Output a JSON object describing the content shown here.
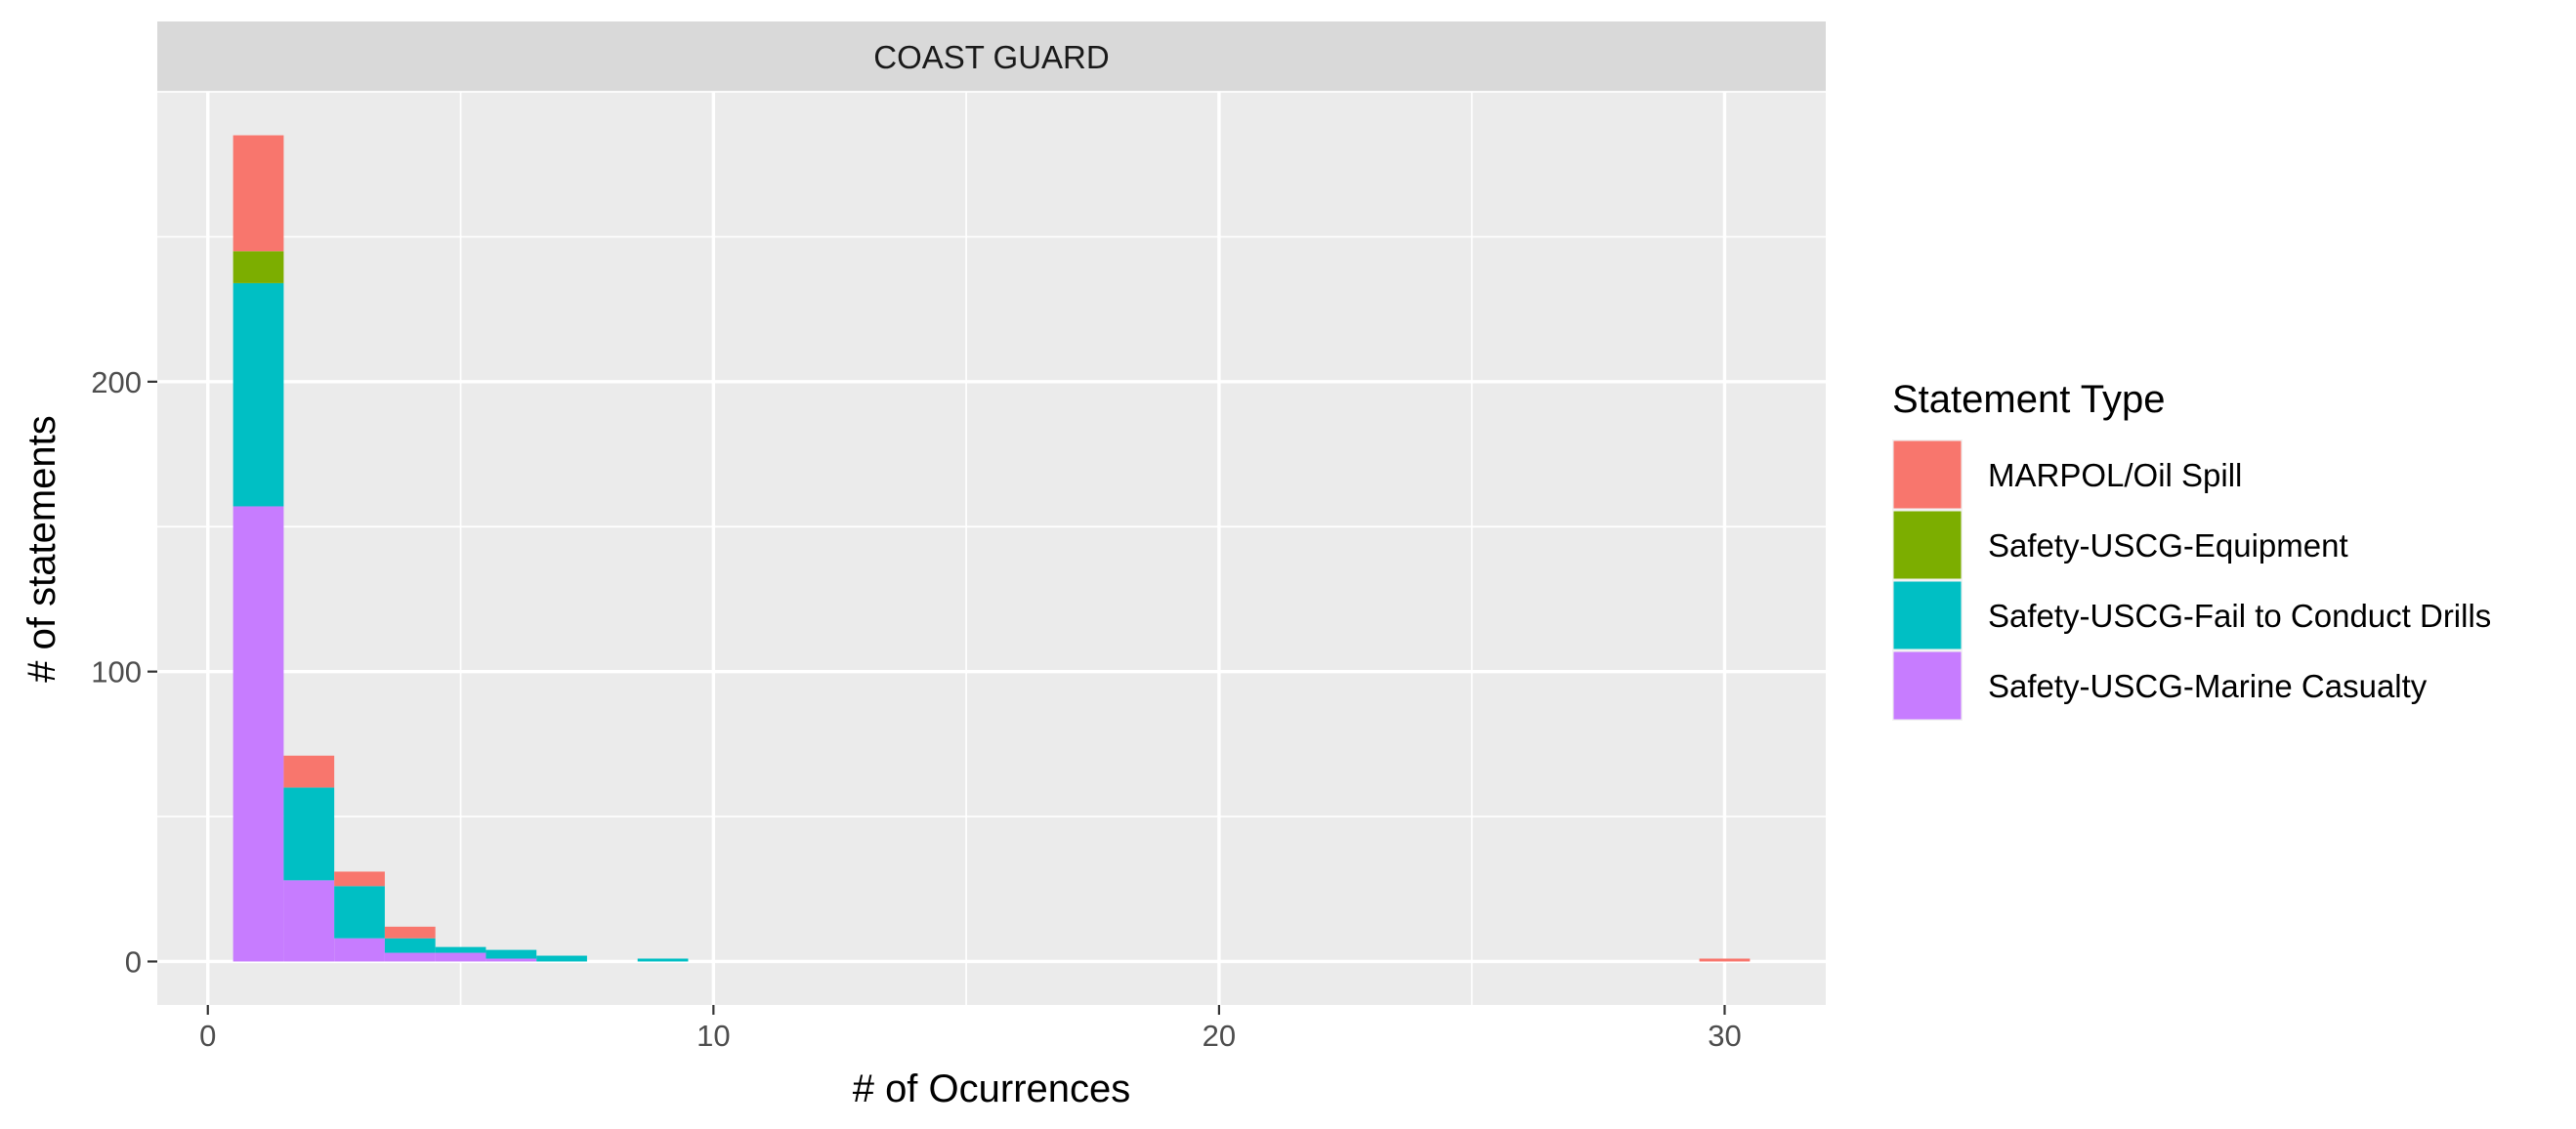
{
  "chart_data": {
    "type": "bar",
    "subtype": "stacked-histogram",
    "facet_label": "COAST GUARD",
    "xlabel": "# of Ocurrences",
    "ylabel": "# of statements",
    "xlim": [
      -1,
      32
    ],
    "ylim": [
      -15,
      300
    ],
    "x_ticks": [
      0,
      10,
      20,
      30
    ],
    "y_ticks": [
      0,
      100,
      200
    ],
    "bin_width": 1,
    "legend_title": "Statement Type",
    "legend_position": "right",
    "grid": true,
    "series": [
      {
        "name": "MARPOL/Oil Spill",
        "color": "#F8766D",
        "points": [
          [
            1,
            40
          ],
          [
            2,
            11
          ],
          [
            3,
            5
          ],
          [
            4,
            4
          ],
          [
            30,
            1
          ]
        ]
      },
      {
        "name": "Safety-USCG-Equipment",
        "color": "#7CAE00",
        "points": [
          [
            1,
            11
          ]
        ]
      },
      {
        "name": "Safety-USCG-Fail to Conduct Drills",
        "color": "#00BFC4",
        "points": [
          [
            1,
            77
          ],
          [
            2,
            32
          ],
          [
            3,
            18
          ],
          [
            4,
            5
          ],
          [
            5,
            2
          ],
          [
            6,
            3
          ],
          [
            7,
            2
          ],
          [
            9,
            1
          ]
        ]
      },
      {
        "name": "Safety-USCG-Marine Casualty",
        "color": "#C77CFF",
        "points": [
          [
            1,
            157
          ],
          [
            2,
            28
          ],
          [
            3,
            8
          ],
          [
            4,
            3
          ],
          [
            5,
            3
          ],
          [
            6,
            1
          ]
        ]
      }
    ]
  }
}
